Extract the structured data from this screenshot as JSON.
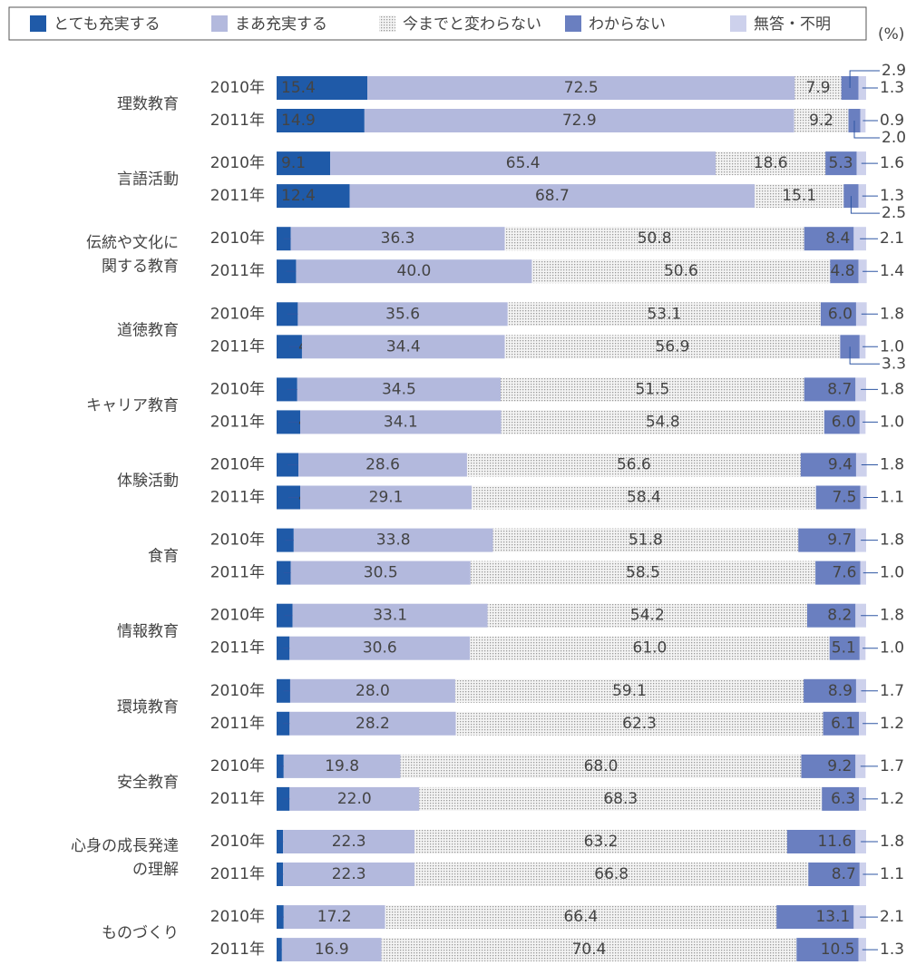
{
  "chart_data": {
    "type": "stacked-bar-horizontal",
    "unit": "(%)",
    "groups": [
      [
        "理数教育"
      ],
      [
        "言語活動"
      ],
      [
        "伝統や文化に",
        "関する教育"
      ],
      [
        "道徳教育"
      ],
      [
        "キャリア教育"
      ],
      [
        "体験活動"
      ],
      [
        "食育"
      ],
      [
        "情報教育"
      ],
      [
        "環境教育"
      ],
      [
        "安全教育"
      ],
      [
        "心身の成長発達",
        "の理解"
      ],
      [
        "ものづくり"
      ]
    ],
    "years": [
      "2010年",
      "2011年"
    ],
    "xlim": [
      0,
      100
    ],
    "series": [
      {
        "name": "とても充実する",
        "color": "#1f5aa8",
        "values": [
          15.4,
          14.9,
          9.1,
          12.4,
          2.4,
          3.3,
          3.6,
          4.3,
          3.5,
          4.0,
          3.7,
          4.0,
          2.9,
          2.4,
          2.7,
          2.2,
          2.3,
          2.2,
          1.2,
          2.2,
          1.1,
          1.1,
          1.2,
          0.9
        ],
        "value_labels": [
          "15.4",
          "14.9",
          "9.1",
          "12.4",
          "2.4",
          "3.3",
          "3.6",
          "4.3",
          "3.5",
          "4.0",
          "3.7",
          "4.0",
          "2.9",
          "2.4",
          "2.7",
          "2.2",
          "2.3",
          "2.2",
          "1.2",
          "2.2",
          "1.1",
          "1.1",
          "1.2",
          "0.9"
        ]
      },
      {
        "name": "まあ充実する",
        "color": "#b3b9dd",
        "values": [
          72.5,
          72.9,
          65.4,
          68.7,
          36.3,
          40.0,
          35.6,
          34.4,
          34.5,
          34.1,
          28.6,
          29.1,
          33.8,
          30.5,
          33.1,
          30.6,
          28.0,
          28.2,
          19.8,
          22.0,
          22.3,
          22.3,
          17.2,
          16.9
        ],
        "value_labels": [
          "72.5",
          "72.9",
          "65.4",
          "68.7",
          "36.3",
          "40.0",
          "35.6",
          "34.4",
          "34.5",
          "34.1",
          "28.6",
          "29.1",
          "33.8",
          "30.5",
          "33.1",
          "30.6",
          "28.0",
          "28.2",
          "19.8",
          "22.0",
          "22.3",
          "22.3",
          "17.2",
          "16.9"
        ]
      },
      {
        "name": "今までと変わらない",
        "color": "#c9c9c9",
        "pattern": "dots",
        "values": [
          7.9,
          9.2,
          18.6,
          15.1,
          50.8,
          50.6,
          53.1,
          56.9,
          51.5,
          54.8,
          56.6,
          58.4,
          51.8,
          58.5,
          54.2,
          61.0,
          59.1,
          62.3,
          68.0,
          68.3,
          63.2,
          66.8,
          66.4,
          70.4
        ],
        "value_labels": [
          "7.9",
          "9.2",
          "18.6",
          "15.1",
          "50.8",
          "50.6",
          "53.1",
          "56.9",
          "51.5",
          "54.8",
          "56.6",
          "58.4",
          "51.8",
          "58.5",
          "54.2",
          "61.0",
          "59.1",
          "62.3",
          "68.0",
          "68.3",
          "63.2",
          "66.8",
          "66.4",
          "70.4"
        ]
      },
      {
        "name": "わからない",
        "color": "#6a7fc0",
        "values": [
          2.9,
          2.0,
          5.3,
          2.5,
          8.4,
          4.8,
          6.0,
          3.3,
          8.7,
          6.0,
          9.4,
          7.5,
          9.7,
          7.6,
          8.2,
          5.1,
          8.9,
          6.1,
          9.2,
          6.3,
          11.6,
          8.7,
          13.1,
          10.5
        ],
        "value_labels": [
          "2.9",
          "2.0",
          "5.3",
          "2.5",
          "8.4",
          "4.8",
          "6.0",
          "3.3",
          "8.7",
          "6.0",
          "9.4",
          "7.5",
          "9.7",
          "7.6",
          "8.2",
          "5.1",
          "8.9",
          "6.1",
          "9.2",
          "6.3",
          "11.6",
          "8.7",
          "13.1",
          "10.5"
        ]
      },
      {
        "name": "無答・不明",
        "color": "#cdd1ec",
        "values": [
          1.3,
          0.9,
          1.6,
          1.3,
          2.1,
          1.4,
          1.8,
          1.0,
          1.8,
          1.0,
          1.8,
          1.1,
          1.8,
          1.0,
          1.8,
          1.0,
          1.7,
          1.2,
          1.7,
          1.2,
          1.8,
          1.1,
          2.1,
          1.3
        ],
        "value_labels": [
          "1.3",
          "0.9",
          "1.6",
          "1.3",
          "2.1",
          "1.4",
          "1.8",
          "1.0",
          "1.8",
          "1.0",
          "1.8",
          "1.1",
          "1.8",
          "1.0",
          "1.8",
          "1.0",
          "1.7",
          "1.2",
          "1.7",
          "1.2",
          "1.8",
          "1.1",
          "2.1",
          "1.3"
        ]
      }
    ]
  }
}
